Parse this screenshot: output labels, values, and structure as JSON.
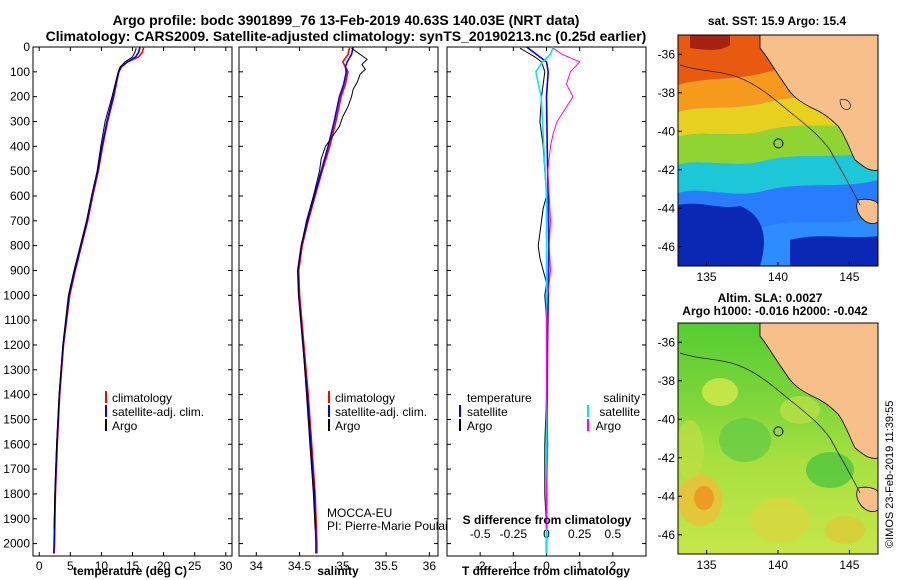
{
  "title_line1": "Argo profile: bodc 3901899_76 13-Feb-2019 40.63S 140.03E (NRT data)",
  "title_line2": "Climatology: CARS2009. Satellite-adjusted climatology: synTS_20190213.nc (0.25d earlier)",
  "side_stamp": "©IMOS 23-Feb-2019 11:39:55",
  "colors": {
    "climatology": "#ff0000",
    "satellite": "#0000ff",
    "argo": "#000000",
    "sat_salinity": "#00e5ff",
    "argo_salinity": "#ff00ff"
  },
  "chart_data": [
    {
      "id": "temperature",
      "type": "line",
      "xlabel": "temperature (deg C)",
      "xlim": [
        -1,
        31
      ],
      "xticks": [
        0,
        5,
        10,
        15,
        20,
        25,
        30
      ],
      "xtick_labels": [
        "0",
        "5",
        "10",
        "15",
        "20",
        "25",
        "30"
      ],
      "ylim": [
        0,
        2050
      ],
      "yticks": [
        0,
        100,
        200,
        300,
        400,
        500,
        600,
        700,
        800,
        900,
        1000,
        1100,
        1200,
        1300,
        1400,
        1500,
        1600,
        1700,
        1800,
        1900,
        2000
      ],
      "ytick_labels": [
        "0",
        "100",
        "200",
        "300",
        "400",
        "500",
        "600",
        "700",
        "800",
        "900",
        "1000",
        "1100",
        "1200",
        "1300",
        "1400",
        "1500",
        "1600",
        "1700",
        "1800",
        "1900",
        "2000"
      ],
      "legend": [
        "climatology",
        "satellite-adj. clim.",
        "Argo"
      ],
      "series": [
        {
          "name": "climatology",
          "color": "#ff0000",
          "width": 1.6,
          "depth": [
            0,
            20,
            40,
            60,
            80,
            100,
            150,
            200,
            300,
            400,
            500,
            600,
            700,
            800,
            900,
            1000,
            1200,
            1400,
            1600,
            1800,
            2000,
            2040
          ],
          "values": [
            16.8,
            16.6,
            16.0,
            14.2,
            13.2,
            12.8,
            12.4,
            12.0,
            11.0,
            10.2,
            9.5,
            8.6,
            7.8,
            6.8,
            5.8,
            4.9,
            3.9,
            3.3,
            2.9,
            2.6,
            2.45,
            2.4
          ]
        },
        {
          "name": "satellite-adj. clim.",
          "color": "#0000ff",
          "width": 1.6,
          "depth": [
            0,
            20,
            40,
            60,
            80,
            100,
            150,
            200,
            300,
            400,
            500,
            600,
            700,
            800,
            900,
            1000,
            1200,
            1400,
            1600,
            1800,
            2000,
            2040
          ],
          "values": [
            16.2,
            16.0,
            15.5,
            14.2,
            13.2,
            12.8,
            12.3,
            11.9,
            10.9,
            10.1,
            9.4,
            8.5,
            7.7,
            6.7,
            5.7,
            4.8,
            3.85,
            3.25,
            2.85,
            2.55,
            2.4,
            2.35
          ]
        },
        {
          "name": "Argo",
          "color": "#000000",
          "width": 1,
          "depth": [
            5,
            20,
            40,
            60,
            80,
            100,
            150,
            200,
            300,
            400,
            500,
            600,
            700,
            800,
            900,
            1000,
            1200,
            1400,
            1600,
            1800,
            1940
          ],
          "values": [
            15.6,
            15.4,
            15.0,
            13.8,
            13.0,
            12.7,
            12.2,
            11.7,
            10.6,
            9.9,
            9.3,
            8.4,
            7.6,
            6.6,
            5.6,
            4.7,
            3.8,
            3.2,
            2.8,
            2.5,
            2.4
          ]
        }
      ]
    },
    {
      "id": "salinity",
      "type": "line",
      "xlabel": "salinity",
      "xlim": [
        33.8,
        36.1
      ],
      "xticks": [
        34,
        34.5,
        35,
        35.5,
        36
      ],
      "xtick_labels": [
        "34",
        "34.5",
        "35",
        "35.5",
        "36"
      ],
      "ylim": [
        0,
        2050
      ],
      "legend": [
        "climatology",
        "satellite-adj. clim.",
        "Argo"
      ],
      "annotation": [
        "MOCCA-EU",
        "PI: Pierre-Marie Poulain"
      ],
      "series": [
        {
          "name": "climatology",
          "color": "#ff0000",
          "width": 1.6,
          "depth": [
            0,
            30,
            60,
            80,
            100,
            150,
            200,
            300,
            400,
            500,
            600,
            700,
            800,
            900,
            1000,
            1200,
            1400,
            1600,
            1800,
            2000,
            2040
          ],
          "values": [
            35.08,
            35.06,
            35.0,
            35.03,
            35.06,
            35.03,
            34.98,
            34.92,
            34.85,
            34.76,
            34.68,
            34.6,
            34.53,
            34.49,
            34.5,
            34.55,
            34.6,
            34.64,
            34.68,
            34.7,
            34.7
          ]
        },
        {
          "name": "satellite-adj. clim.",
          "color": "#0000ff",
          "width": 1.6,
          "depth": [
            0,
            30,
            60,
            80,
            100,
            150,
            200,
            300,
            400,
            500,
            600,
            700,
            800,
            900,
            1000,
            1200,
            1400,
            1600,
            1800,
            2000,
            2040
          ],
          "values": [
            35.12,
            35.1,
            35.05,
            35.03,
            35.04,
            35.01,
            34.96,
            34.9,
            34.83,
            34.75,
            34.67,
            34.59,
            34.52,
            34.48,
            34.49,
            34.54,
            34.59,
            34.63,
            34.67,
            34.69,
            34.69
          ]
        },
        {
          "name": "Argo",
          "color": "#000000",
          "width": 1,
          "depth": [
            5,
            30,
            50,
            70,
            90,
            110,
            140,
            170,
            200,
            240,
            280,
            320,
            360,
            400,
            450,
            500,
            600,
            700,
            800,
            900,
            1000,
            1200,
            1400,
            1600,
            1800,
            1940
          ],
          "values": [
            35.1,
            35.2,
            35.28,
            35.22,
            35.26,
            35.2,
            35.17,
            35.12,
            35.1,
            35.06,
            35.0,
            34.96,
            34.88,
            34.8,
            34.75,
            34.73,
            34.66,
            34.58,
            34.52,
            34.48,
            34.49,
            34.54,
            34.58,
            34.62,
            34.66,
            34.68
          ]
        }
      ]
    },
    {
      "id": "difference",
      "type": "line",
      "xlabel": "T difference from climatology",
      "xlim": [
        -3,
        3
      ],
      "xticks": [
        -2,
        -1,
        0,
        1,
        2
      ],
      "xtick_labels": [
        "-2",
        "-1",
        "0",
        "1",
        "2"
      ],
      "top_label": "S difference from climatology",
      "top_ticks": [
        -0.5,
        -0.25,
        0,
        0.25,
        0.5
      ],
      "top_tick_labels": [
        "-0.5",
        "-0.25",
        "0",
        "0.25",
        "0.5"
      ],
      "ylim": [
        0,
        2050
      ],
      "legend_left_title": "temperature",
      "legend_left": [
        "satellite",
        "Argo"
      ],
      "legend_right_title": "salinity",
      "legend_right": [
        "satellite",
        "Argo"
      ],
      "series": [
        {
          "name": "T satellite",
          "color": "#0000ff",
          "width": 1.6,
          "depth": [
            0,
            30,
            60,
            100,
            200,
            400,
            600,
            800,
            1000,
            1200,
            1400,
            1600,
            1800,
            2000,
            2040
          ],
          "values": [
            -0.6,
            -0.3,
            0,
            0.05,
            0,
            0.02,
            0.05,
            0.07,
            0.05,
            0.03,
            0.02,
            0.01,
            0.01,
            0,
            0
          ]
        },
        {
          "name": "T Argo",
          "color": "#000000",
          "width": 1,
          "depth": [
            5,
            20,
            40,
            60,
            80,
            100,
            150,
            200,
            300,
            400,
            500,
            600,
            650,
            700,
            750,
            800,
            850,
            900,
            950,
            1000,
            1100,
            1200,
            1400,
            1600,
            1800,
            1940
          ],
          "values": [
            -0.8,
            -0.6,
            -0.35,
            -0.15,
            -0.1,
            -0.05,
            -0.1,
            -0.15,
            -0.2,
            -0.1,
            -0.05,
            0,
            -0.1,
            -0.15,
            -0.2,
            -0.25,
            -0.2,
            -0.1,
            0,
            -0.05,
            0,
            0.02,
            0,
            -0.05,
            -0.05,
            0
          ]
        },
        {
          "name": "S satellite",
          "color": "#00e5ff",
          "width": 1.6,
          "depth": [
            0,
            30,
            60,
            100,
            150,
            200,
            300,
            400,
            500,
            600,
            700,
            800,
            900,
            1000,
            1200,
            1400,
            1600,
            1800,
            2000,
            2040
          ],
          "values": [
            0.05,
            0.03,
            -0.03,
            -0.08,
            -0.06,
            -0.04,
            -0.03,
            -0.02,
            -0.01,
            0,
            0,
            0,
            0,
            0,
            0,
            0,
            0,
            0,
            0,
            0
          ]
        },
        {
          "name": "S Argo",
          "color": "#ff00ff",
          "width": 1,
          "depth": [
            5,
            30,
            60,
            100,
            150,
            200,
            250,
            300,
            350,
            400,
            500,
            600,
            700,
            800,
            900,
            1000,
            1100,
            1200,
            1400,
            1600,
            1800,
            1940
          ],
          "values": [
            0.05,
            0.12,
            0.25,
            0.18,
            0.15,
            0.2,
            0.14,
            0.08,
            0.05,
            0.03,
            0.01,
            0.02,
            0.03,
            0.02,
            0.03,
            0.01,
            0,
            0,
            0,
            0.01,
            0,
            0
          ]
        }
      ]
    },
    {
      "id": "sst_map",
      "type": "heatmap",
      "title": "sat. SST: 15.9 Argo: 15.4",
      "xlim": [
        133,
        147
      ],
      "ylim": [
        -47,
        -35
      ],
      "xticks": [
        135,
        140,
        145
      ],
      "xtick_labels": [
        "135",
        "140",
        "145"
      ],
      "yticks": [
        -36,
        -38,
        -40,
        -42,
        -44,
        -46
      ],
      "ytick_labels": [
        "-36",
        "-38",
        "-40",
        "-42",
        "-44",
        "-46"
      ],
      "argo_location": [
        140.03,
        -40.63
      ]
    },
    {
      "id": "sla_map",
      "type": "heatmap",
      "title_line1": "Altim. SLA: 0.0027",
      "title_line2": "Argo h1000: -0.016 h2000: -0.042",
      "xlim": [
        133,
        147
      ],
      "ylim": [
        -47,
        -35
      ],
      "xticks": [
        135,
        140,
        145
      ],
      "xtick_labels": [
        "135",
        "140",
        "145"
      ],
      "yticks": [
        -36,
        -38,
        -40,
        -42,
        -44,
        -46
      ],
      "ytick_labels": [
        "-36",
        "-38",
        "-40",
        "-42",
        "-44",
        "-46"
      ],
      "argo_location": [
        140.03,
        -40.63
      ]
    }
  ]
}
